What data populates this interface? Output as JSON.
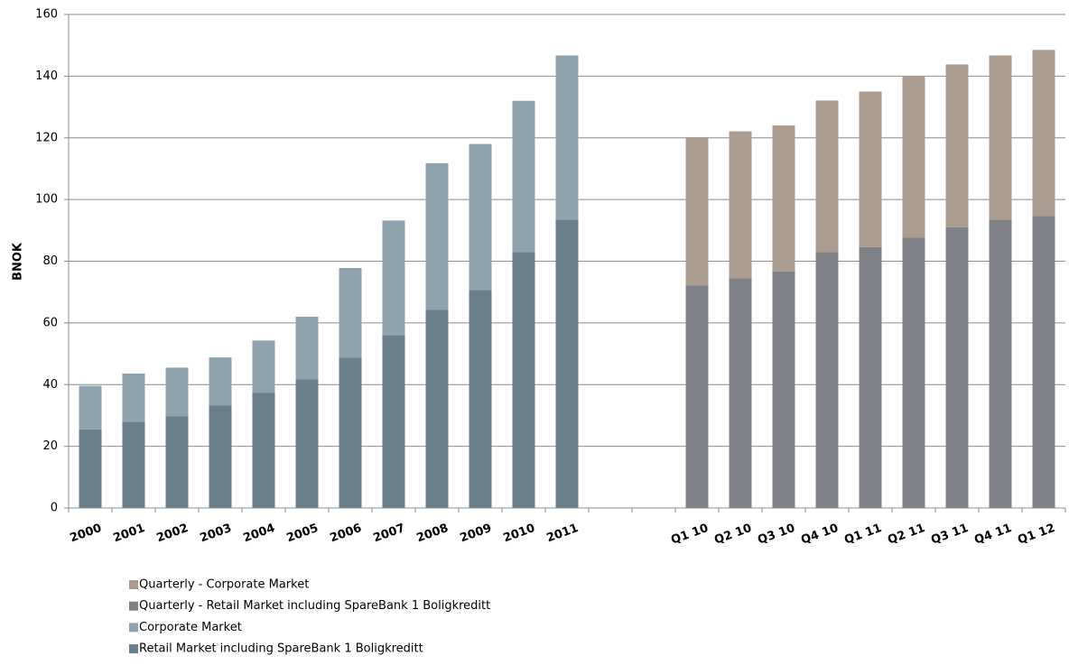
{
  "chart_data": {
    "type": "stacked_bar",
    "y_label": "BNOK",
    "categories": [
      "2000",
      "2001",
      "2002",
      "2003",
      "2004",
      "2005",
      "2006",
      "2007",
      "2008",
      "2009",
      "2010",
      "2011",
      null,
      null,
      "Q1 10",
      "Q2 10",
      "Q3 10",
      "Q4 10",
      "Q1 11",
      "Q2 11",
      "Q3 11",
      "Q4 11",
      "Q1 12"
    ],
    "series": [
      {
        "name": "Retail Market including SpareBank 1 Boligkreditt",
        "color": "#6a7f8c",
        "values": [
          25.5,
          28,
          29.7,
          33.2,
          37.3,
          41.7,
          48.7,
          56,
          64.2,
          70.7,
          83,
          93.5,
          null,
          null,
          null,
          null,
          null,
          null,
          null,
          null,
          null,
          null,
          null
        ]
      },
      {
        "name": "Corporate Market",
        "color": "#8fa3ae",
        "values": [
          14.1,
          15.6,
          15.8,
          15.6,
          17,
          20.3,
          29.1,
          37.2,
          47.6,
          47.3,
          49,
          53.2,
          null,
          null,
          null,
          null,
          null,
          null,
          null,
          null,
          null,
          null,
          null
        ]
      },
      {
        "name": "Quarterly - Retail Market including SpareBank 1 Boligkreditt",
        "color": "#808087",
        "values": [
          null,
          null,
          null,
          null,
          null,
          null,
          null,
          null,
          null,
          null,
          null,
          null,
          null,
          null,
          72.2,
          74.5,
          76.7,
          83,
          84.6,
          87.6,
          91,
          93.5,
          94.7
        ]
      },
      {
        "name": "Quarterly - Corporate Market",
        "color": "#ab9c8f",
        "values": [
          null,
          null,
          null,
          null,
          null,
          null,
          null,
          null,
          null,
          null,
          null,
          null,
          null,
          null,
          48,
          47.6,
          47.3,
          49.1,
          50.4,
          52.5,
          52.8,
          53.2,
          53.8
        ]
      }
    ],
    "ylim": [
      0,
      160
    ],
    "yticks": [
      0,
      20,
      40,
      60,
      80,
      100,
      120,
      140,
      160
    ],
    "grid": true
  }
}
